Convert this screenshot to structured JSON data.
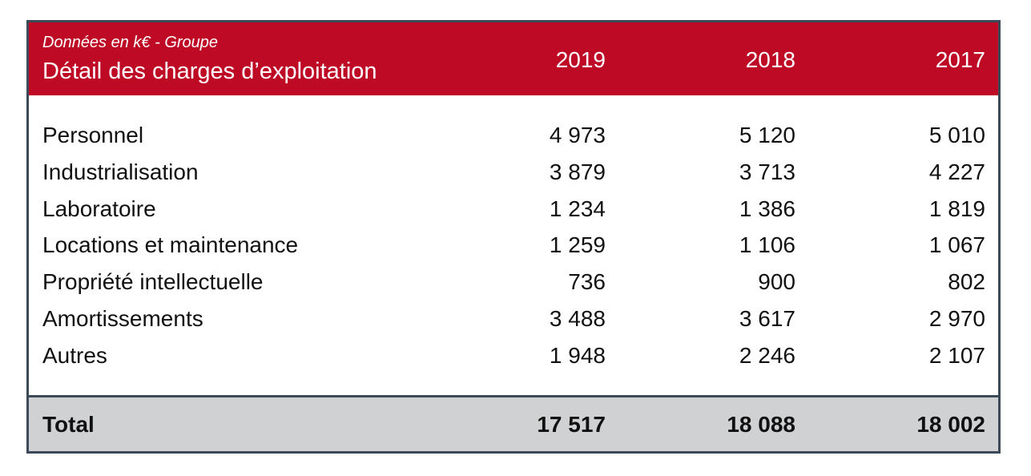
{
  "header": {
    "subtitle": "Données en k€ - Groupe",
    "title": "Détail des charges d’exploitation",
    "years": [
      "2019",
      "2018",
      "2017"
    ]
  },
  "rows": [
    {
      "label": "Personnel",
      "values": [
        "4 973",
        "5 120",
        "5 010"
      ]
    },
    {
      "label": "Industrialisation",
      "values": [
        "3 879",
        "3 713",
        "4 227"
      ]
    },
    {
      "label": "Laboratoire",
      "values": [
        "1 234",
        "1 386",
        "1 819"
      ]
    },
    {
      "label": "Locations et maintenance",
      "values": [
        "1 259",
        "1 106",
        "1 067"
      ]
    },
    {
      "label": "Propriété intellectuelle",
      "values": [
        "736",
        "900",
        "802"
      ]
    },
    {
      "label": "Amortissements",
      "values": [
        "3 488",
        "3 617",
        "2 970"
      ]
    },
    {
      "label": "Autres",
      "values": [
        "1 948",
        "2 246",
        "2 107"
      ]
    }
  ],
  "total": {
    "label": "Total",
    "values": [
      "17 517",
      "18 088",
      "18 002"
    ]
  },
  "colors": {
    "header_bg": "#bf0a26",
    "border": "#3b4a59",
    "total_bg": "#cfd1d3"
  }
}
